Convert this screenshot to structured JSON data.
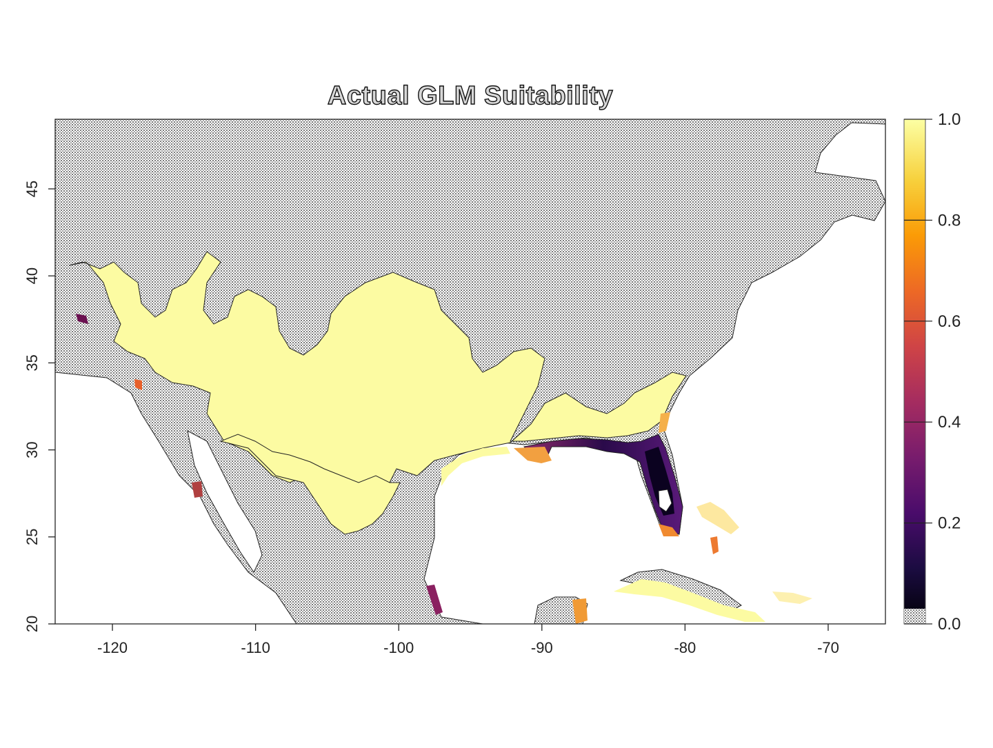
{
  "map": {
    "title": "Actual GLM Suitability",
    "x_ticks": [
      "-120",
      "-110",
      "-100",
      "-90",
      "-80",
      "-70"
    ],
    "y_ticks": [
      "20",
      "25",
      "30",
      "35",
      "40",
      "45"
    ],
    "legend_ticks": [
      "0.0",
      "0.2",
      "0.4",
      "0.6",
      "0.8",
      "1.0"
    ],
    "palette": [
      "#000004",
      "#1b0c41",
      "#4a0c6b",
      "#781c6d",
      "#a52c60",
      "#cf4446",
      "#ed6925",
      "#fb9b06",
      "#f7d13d",
      "#fcffa4"
    ],
    "land_unsuitable_color": "#b8b8b8",
    "suitable_color": "#fcfba2"
  },
  "chart_data": {
    "type": "heatmap",
    "title": "Actual GLM Suitability",
    "xlabel": "",
    "ylabel": "",
    "xlim": [
      -124,
      -66
    ],
    "ylim": [
      20,
      49
    ],
    "x_ticks": [
      -120,
      -110,
      -100,
      -90,
      -80,
      -70
    ],
    "y_ticks": [
      20,
      25,
      30,
      35,
      40,
      45
    ],
    "color_scale": {
      "min": 0.0,
      "max": 1.0,
      "ticks": [
        0.0,
        0.2,
        0.4,
        0.6,
        0.8,
        1.0
      ],
      "palette": "inferno"
    }
  }
}
